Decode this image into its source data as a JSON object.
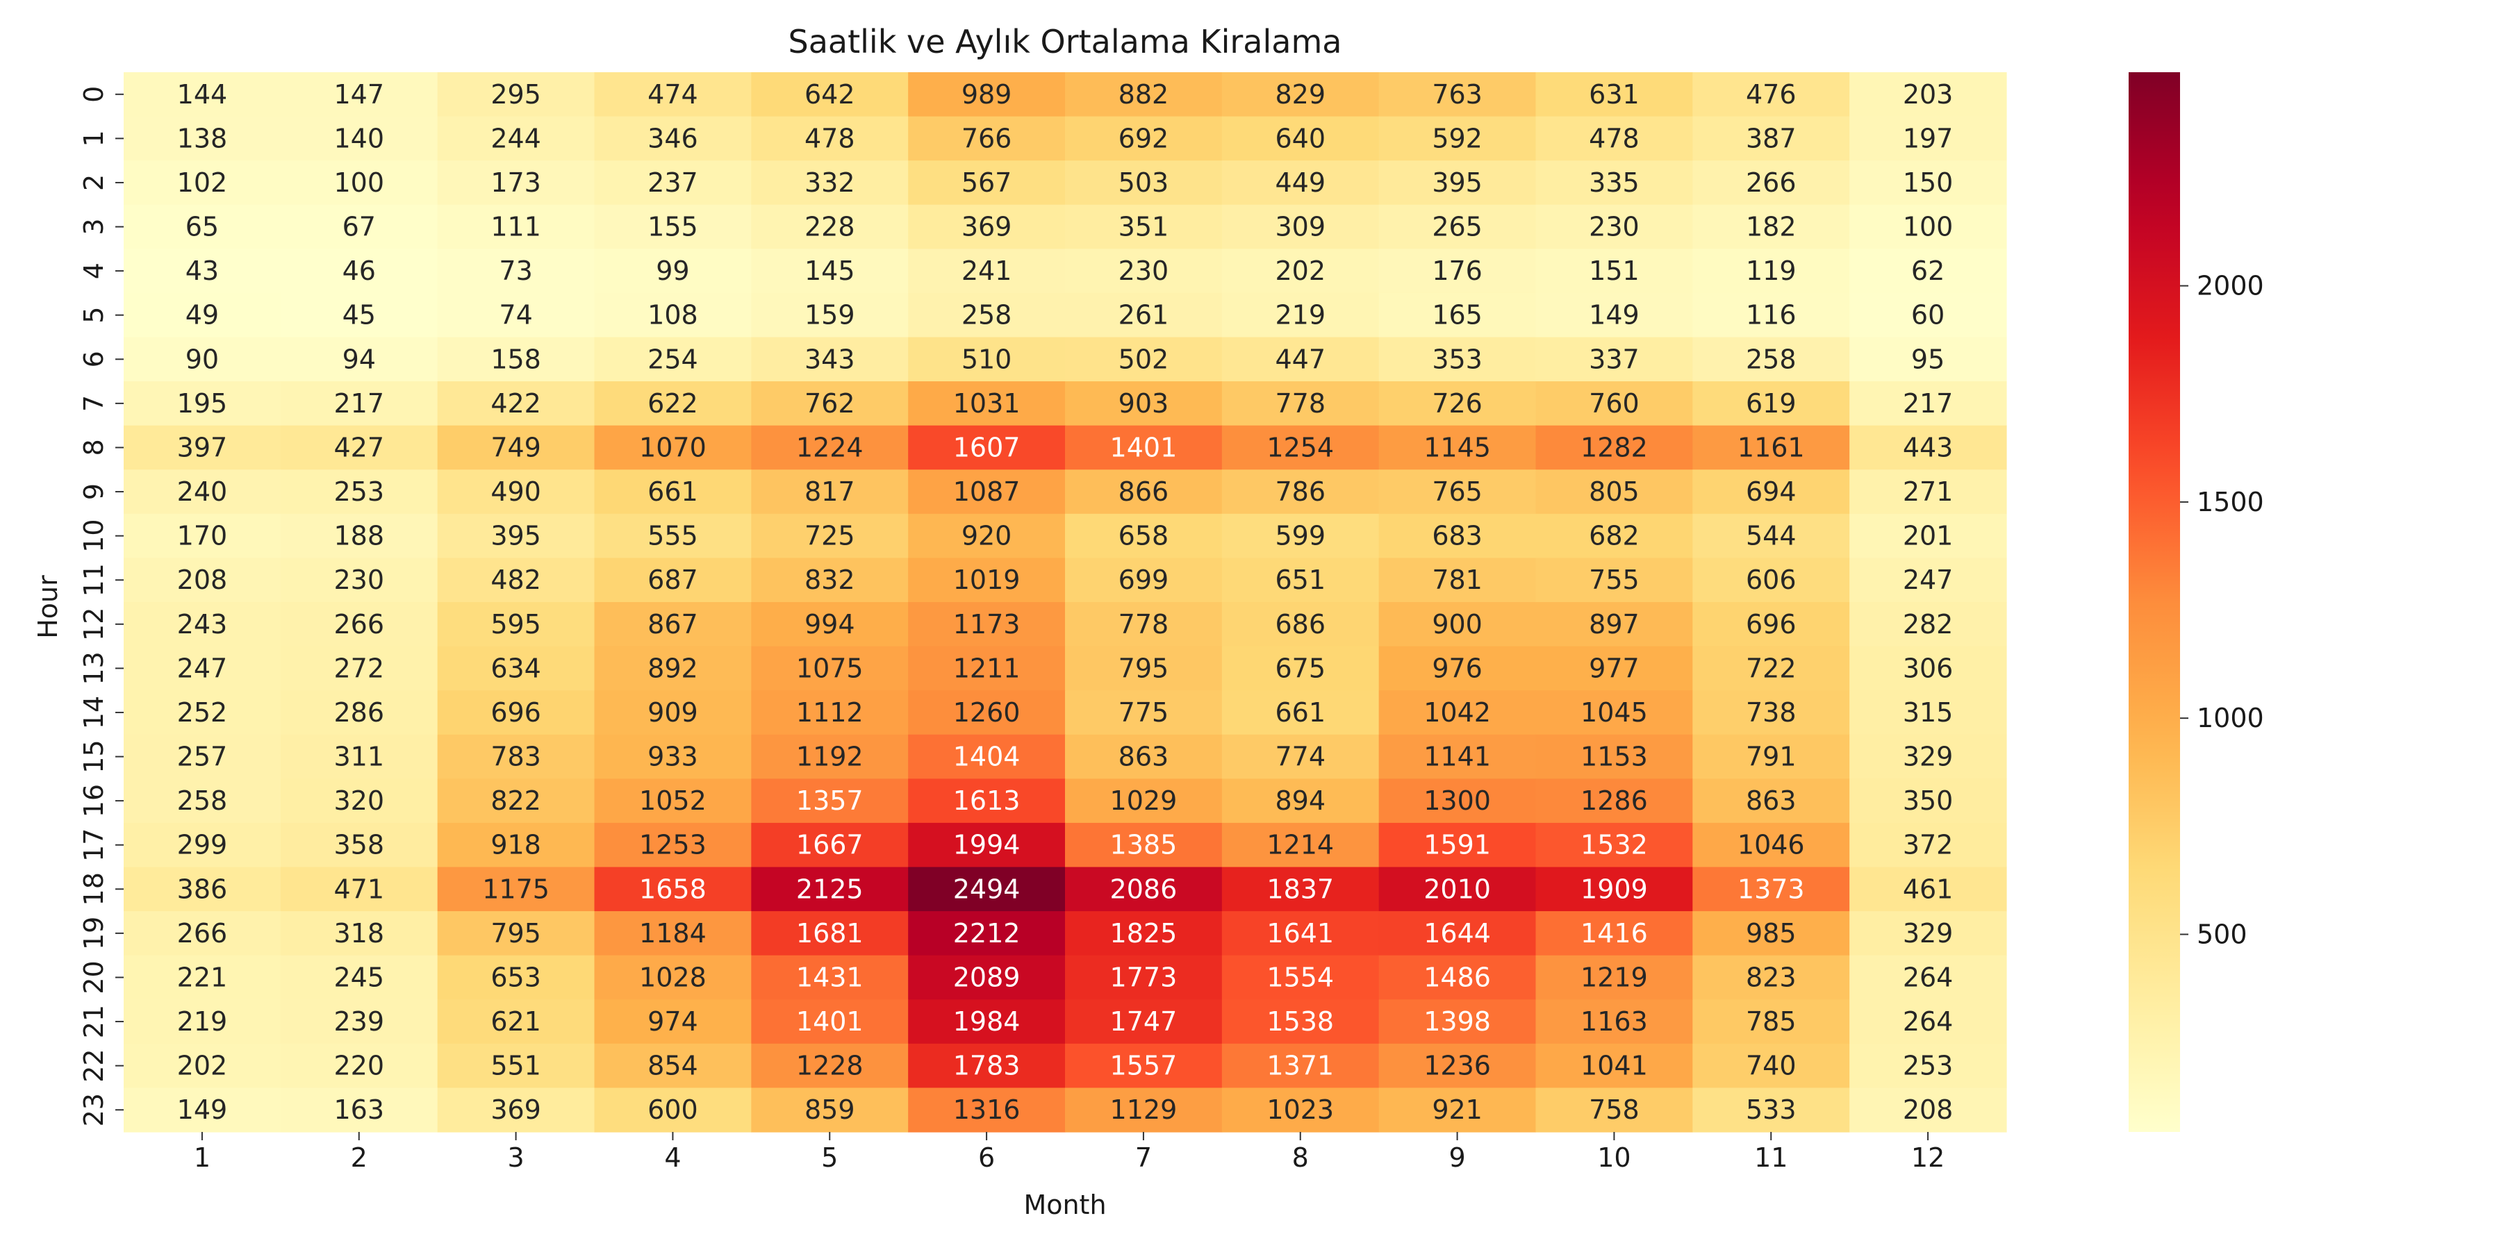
{
  "chart_data": {
    "type": "heatmap",
    "title": "Saatlik ve Aylık Ortalama Kiralama",
    "xlabel": "Month",
    "ylabel": "Hour",
    "x_categories": [
      "1",
      "2",
      "3",
      "4",
      "5",
      "6",
      "7",
      "8",
      "9",
      "10",
      "11",
      "12"
    ],
    "y_categories": [
      "0",
      "1",
      "2",
      "3",
      "4",
      "5",
      "6",
      "7",
      "8",
      "9",
      "10",
      "11",
      "12",
      "13",
      "14",
      "15",
      "16",
      "17",
      "18",
      "19",
      "20",
      "21",
      "22",
      "23"
    ],
    "values": [
      [
        144,
        147,
        295,
        474,
        642,
        989,
        882,
        829,
        763,
        631,
        476,
        203
      ],
      [
        138,
        140,
        244,
        346,
        478,
        766,
        692,
        640,
        592,
        478,
        387,
        197
      ],
      [
        102,
        100,
        173,
        237,
        332,
        567,
        503,
        449,
        395,
        335,
        266,
        150
      ],
      [
        65,
        67,
        111,
        155,
        228,
        369,
        351,
        309,
        265,
        230,
        182,
        100
      ],
      [
        43,
        46,
        73,
        99,
        145,
        241,
        230,
        202,
        176,
        151,
        119,
        62
      ],
      [
        49,
        45,
        74,
        108,
        159,
        258,
        261,
        219,
        165,
        149,
        116,
        60
      ],
      [
        90,
        94,
        158,
        254,
        343,
        510,
        502,
        447,
        353,
        337,
        258,
        95
      ],
      [
        195,
        217,
        422,
        622,
        762,
        1031,
        903,
        778,
        726,
        760,
        619,
        217
      ],
      [
        397,
        427,
        749,
        1070,
        1224,
        1607,
        1401,
        1254,
        1145,
        1282,
        1161,
        443
      ],
      [
        240,
        253,
        490,
        661,
        817,
        1087,
        866,
        786,
        765,
        805,
        694,
        271
      ],
      [
        170,
        188,
        395,
        555,
        725,
        920,
        658,
        599,
        683,
        682,
        544,
        201
      ],
      [
        208,
        230,
        482,
        687,
        832,
        1019,
        699,
        651,
        781,
        755,
        606,
        247
      ],
      [
        243,
        266,
        595,
        867,
        994,
        1173,
        778,
        686,
        900,
        897,
        696,
        282
      ],
      [
        247,
        272,
        634,
        892,
        1075,
        1211,
        795,
        675,
        976,
        977,
        722,
        306
      ],
      [
        252,
        286,
        696,
        909,
        1112,
        1260,
        775,
        661,
        1042,
        1045,
        738,
        315
      ],
      [
        257,
        311,
        783,
        933,
        1192,
        1404,
        863,
        774,
        1141,
        1153,
        791,
        329
      ],
      [
        258,
        320,
        822,
        1052,
        1357,
        1613,
        1029,
        894,
        1300,
        1286,
        863,
        350
      ],
      [
        299,
        358,
        918,
        1253,
        1667,
        1994,
        1385,
        1214,
        1591,
        1532,
        1046,
        372
      ],
      [
        386,
        471,
        1175,
        1658,
        2125,
        2494,
        2086,
        1837,
        2010,
        1909,
        1373,
        461
      ],
      [
        266,
        318,
        795,
        1184,
        1681,
        2212,
        1825,
        1641,
        1644,
        1416,
        985,
        329
      ],
      [
        221,
        245,
        653,
        1028,
        1431,
        2089,
        1773,
        1554,
        1486,
        1219,
        823,
        264
      ],
      [
        219,
        239,
        621,
        974,
        1401,
        1984,
        1747,
        1538,
        1398,
        1163,
        785,
        264
      ],
      [
        202,
        220,
        551,
        854,
        1228,
        1783,
        1557,
        1371,
        1236,
        1041,
        740,
        253
      ],
      [
        149,
        163,
        369,
        600,
        859,
        1316,
        1129,
        1023,
        921,
        758,
        533,
        208
      ]
    ],
    "colorbar": {
      "colormap": "YlOrRd",
      "vmin": 43,
      "vmax": 2494,
      "ticks": [
        500,
        1000,
        1500,
        2000
      ],
      "tick_labels": [
        "500",
        "1000",
        "1500",
        "2000"
      ]
    },
    "annotations": "cell values printed in each cell"
  }
}
